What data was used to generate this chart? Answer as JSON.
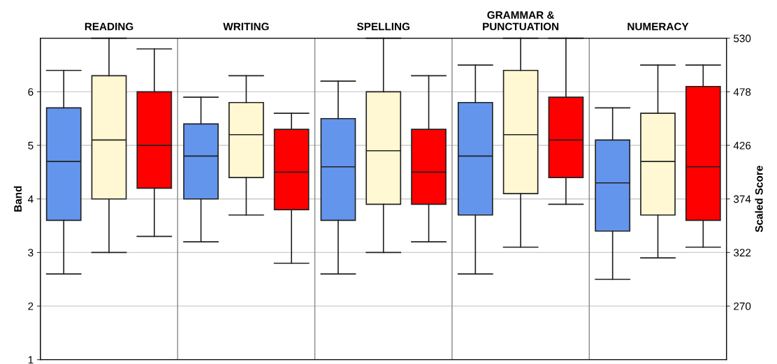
{
  "chart_data": {
    "type": "box",
    "categories": [
      "READING",
      "WRITING",
      "SPELLING",
      "GRAMMAR &\nPUNCTUATION",
      "NUMERACY"
    ],
    "ylabel": "Band",
    "y2label": "Scaled Score",
    "ylim": [
      1,
      7
    ],
    "yticks": [
      1,
      2,
      3,
      4,
      5,
      6
    ],
    "y2lim": [
      218,
      530
    ],
    "y2ticks": [
      270,
      322,
      374,
      426,
      478,
      530
    ],
    "grid": true,
    "series": [
      {
        "color": "#6495ed",
        "boxes": [
          {
            "low": 2.6,
            "q1": 3.6,
            "median": 4.7,
            "q3": 5.7,
            "high": 6.4
          },
          {
            "low": 3.2,
            "q1": 4.0,
            "median": 4.8,
            "q3": 5.4,
            "high": 5.9
          },
          {
            "low": 2.6,
            "q1": 3.6,
            "median": 4.6,
            "q3": 5.5,
            "high": 6.2
          },
          {
            "low": 2.6,
            "q1": 3.7,
            "median": 4.8,
            "q3": 5.8,
            "high": 6.5
          },
          {
            "low": 2.5,
            "q1": 3.4,
            "median": 4.3,
            "q3": 5.1,
            "high": 5.7
          }
        ]
      },
      {
        "color": "#fff8d2",
        "boxes": [
          {
            "low": 3.0,
            "q1": 4.0,
            "median": 5.1,
            "q3": 6.3,
            "high": 7.0
          },
          {
            "low": 3.7,
            "q1": 4.4,
            "median": 5.2,
            "q3": 5.8,
            "high": 6.3
          },
          {
            "low": 3.0,
            "q1": 3.9,
            "median": 4.9,
            "q3": 6.0,
            "high": 7.0
          },
          {
            "low": 3.1,
            "q1": 4.1,
            "median": 5.2,
            "q3": 6.4,
            "high": 7.0
          },
          {
            "low": 2.9,
            "q1": 3.7,
            "median": 4.7,
            "q3": 5.6,
            "high": 6.5
          }
        ]
      },
      {
        "color": "#ff0000",
        "boxes": [
          {
            "low": 3.3,
            "q1": 4.2,
            "median": 5.0,
            "q3": 6.0,
            "high": 6.8
          },
          {
            "low": 2.8,
            "q1": 3.8,
            "median": 4.5,
            "q3": 5.3,
            "high": 5.6
          },
          {
            "low": 3.2,
            "q1": 3.9,
            "median": 4.5,
            "q3": 5.3,
            "high": 6.3
          },
          {
            "low": 3.9,
            "q1": 4.4,
            "median": 5.1,
            "q3": 5.9,
            "high": 7.0
          },
          {
            "low": 3.1,
            "q1": 3.6,
            "median": 4.6,
            "q3": 6.1,
            "high": 6.5
          }
        ]
      }
    ]
  }
}
